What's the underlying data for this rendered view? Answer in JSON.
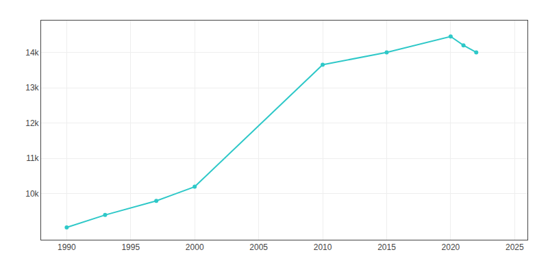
{
  "chart_data": {
    "type": "line",
    "x": [
      1990,
      1993,
      1997,
      2000,
      2010,
      2015,
      2020,
      2021,
      2022
    ],
    "values": [
      9050,
      9400,
      9800,
      10200,
      13650,
      14000,
      14450,
      14200,
      14000
    ],
    "color": "#2ec8c8",
    "marker": "circle",
    "xlim": [
      1988,
      2026
    ],
    "xticks": [
      1990,
      1995,
      2000,
      2005,
      2010,
      2015,
      2020,
      2025
    ],
    "ylim": [
      8700,
      14900
    ],
    "yticks": [
      {
        "value": 10000,
        "label": "10k"
      },
      {
        "value": 11000,
        "label": "11k"
      },
      {
        "value": 12000,
        "label": "12k"
      },
      {
        "value": 13000,
        "label": "13k"
      },
      {
        "value": 14000,
        "label": "14k"
      }
    ],
    "grid": true
  }
}
